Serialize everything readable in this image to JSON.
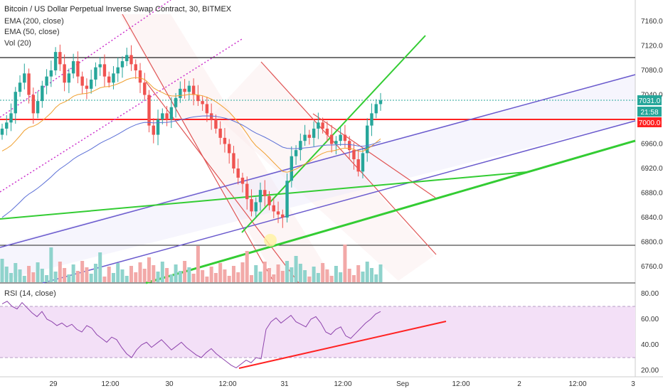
{
  "header": {
    "title": "Bitcoin / US Dollar Perpetual Inverse Swap Contract, 30, BITMEX",
    "indicators": [
      "EMA (200, close)",
      "EMA (50, close)",
      "Vol (20)"
    ],
    "rsi_label": "RSI (14, close)"
  },
  "price_badges": {
    "last_price": "7031.0",
    "countdown": "21:58",
    "level": "7000.0"
  },
  "colors": {
    "up": "#26a69a",
    "down": "#ef5350",
    "ema200": "#5b6fd6",
    "ema50": "#f0a030",
    "channel_red": "#e05555",
    "green_line": "#33cc33",
    "blue_line": "#6a5acd",
    "pink_dotted": "#cc33cc",
    "rsi_line": "#8e44ad",
    "rsi_band": "#f3e0f7",
    "support_red": "#ff2222",
    "hline": "#222222"
  },
  "chart_data": [
    {
      "type": "candlestick",
      "title": "Bitcoin / US Dollar Perpetual Inverse Swap Contract, 30, BITMEX",
      "x_ticks": [
        "29",
        "12:00",
        "30",
        "12:00",
        "31",
        "12:00",
        "Sep",
        "12:00",
        "2",
        "12:00",
        "3"
      ],
      "y_ticks": [
        7160,
        7120,
        7080,
        7040,
        6960,
        6920,
        6880,
        6840,
        6800,
        6760
      ],
      "y_range": [
        6740,
        7185
      ],
      "horizontal_levels": [
        7100,
        7000,
        6795
      ],
      "last_price": 7031.0,
      "close_series": [
        6985,
        6995,
        7010,
        7045,
        7060,
        7075,
        7040,
        7010,
        7030,
        7055,
        7070,
        7080,
        7110,
        7090,
        7060,
        7075,
        7095,
        7070,
        7055,
        7050,
        7065,
        7085,
        7090,
        7070,
        7060,
        7075,
        7085,
        7095,
        7105,
        7090,
        7080,
        7060,
        7040,
        6990,
        6975,
        7000,
        7010,
        7000,
        7020,
        7035,
        7050,
        7045,
        7055,
        7040,
        7030,
        7025,
        7010,
        7000,
        6985,
        6970,
        6960,
        6945,
        6920,
        6905,
        6895,
        6870,
        6850,
        6865,
        6885,
        6875,
        6860,
        6850,
        6845,
        6840,
        6900,
        6940,
        6950,
        6965,
        6975,
        6970,
        6985,
        6995,
        6985,
        6975,
        6960,
        6965,
        6975,
        6965,
        6950,
        6935,
        6915,
        6945,
        6990,
        7010,
        7025,
        7031
      ]
    },
    {
      "type": "line",
      "title": "RSI (14, close)",
      "y_ticks": [
        80,
        60,
        40,
        20
      ],
      "y_range": [
        16,
        84
      ],
      "band": [
        30,
        70
      ],
      "values": [
        72,
        74,
        70,
        68,
        73,
        69,
        65,
        62,
        66,
        60,
        58,
        55,
        57,
        54,
        56,
        52,
        50,
        55,
        53,
        48,
        45,
        42,
        46,
        44,
        38,
        33,
        30,
        36,
        40,
        42,
        38,
        41,
        44,
        40,
        36,
        39,
        42,
        38,
        35,
        32,
        30,
        34,
        37,
        33,
        30,
        27,
        24,
        22,
        25,
        28,
        26,
        30,
        29,
        52,
        58,
        61,
        57,
        60,
        63,
        58,
        56,
        54,
        60,
        62,
        57,
        50,
        48,
        52,
        54,
        47,
        45,
        49,
        53,
        57,
        60,
        64,
        66
      ]
    }
  ]
}
